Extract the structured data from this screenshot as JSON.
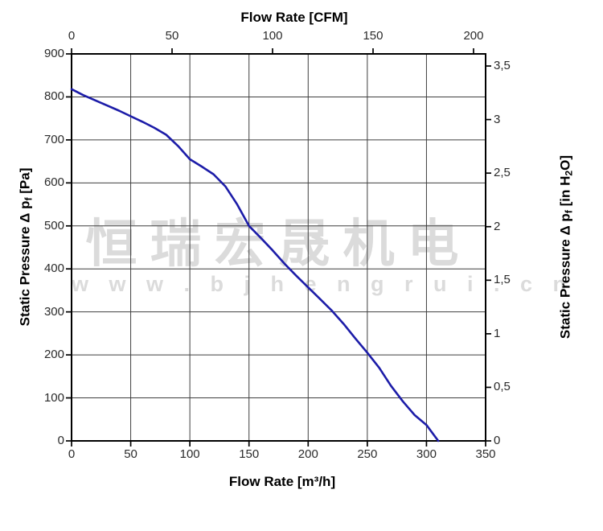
{
  "watermark": {
    "line1": "恒瑞宏晟机电",
    "line2": "w w w . b j h e n g r u i . c n",
    "color": "#dbdbdb"
  },
  "axes": {
    "top": {
      "title": "Flow Rate [CFM]"
    },
    "bottom": {
      "title": "Flow Rate [m³/h]"
    },
    "left": {
      "title_main": "Static Pressure Δ p",
      "title_sub": "f",
      "title_unit": " [Pa]"
    },
    "right": {
      "title_main": "Static Pressure Δ p",
      "title_sub": "f",
      "title_unit_pre": " [in H",
      "title_unit_sub": "2",
      "title_unit_post": "O]"
    }
  },
  "chart_data": {
    "type": "line",
    "title": "",
    "grid": true,
    "curve_color": "#1c1ca8",
    "grid_color": "#3f3f3f",
    "frame_color": "#000000",
    "series": [
      {
        "name": "static-pressure-vs-flow",
        "x_m3h": [
          0,
          10,
          20,
          30,
          40,
          50,
          60,
          70,
          80,
          90,
          100,
          110,
          120,
          130,
          140,
          150,
          160,
          170,
          180,
          190,
          200,
          210,
          220,
          230,
          240,
          250,
          260,
          270,
          280,
          290,
          300,
          310
        ],
        "y_pa": [
          818,
          804,
          792,
          780,
          768,
          755,
          742,
          728,
          712,
          686,
          655,
          638,
          620,
          592,
          550,
          500,
          472,
          443,
          412,
          384,
          357,
          330,
          303,
          272,
          238,
          205,
          170,
          128,
          92,
          60,
          37,
          0
        ]
      }
    ],
    "x_axis_bottom": {
      "label": "Flow Rate [m³/h]",
      "ticks": [
        0,
        50,
        100,
        150,
        200,
        250,
        300,
        350
      ],
      "range": [
        0,
        350
      ]
    },
    "x_axis_top": {
      "label": "Flow Rate [CFM]",
      "ticks": [
        0,
        50,
        100,
        150,
        200
      ],
      "m3h_per_cfm": 1.699
    },
    "y_axis_left": {
      "label": "Static Pressure Δpf [Pa]",
      "ticks": [
        0,
        100,
        200,
        300,
        400,
        500,
        600,
        700,
        800,
        900
      ],
      "range": [
        0,
        900
      ]
    },
    "y_axis_right": {
      "label": "Static Pressure Δpf [in H₂O]",
      "ticks": [
        0,
        0.5,
        1,
        1.5,
        2,
        2.5,
        3,
        3.5
      ],
      "pa_per_inh2o": 249.1,
      "decimal_separator": ","
    }
  }
}
